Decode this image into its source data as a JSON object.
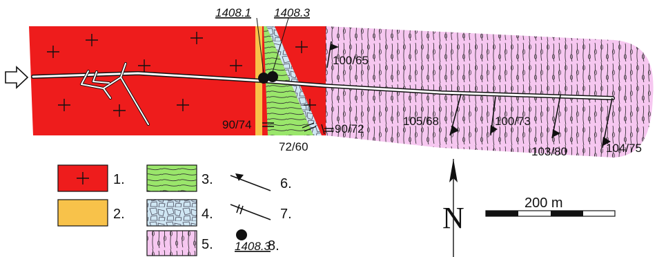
{
  "colors": {
    "granite": "#ee1c1c",
    "dyke": "#f8c24a",
    "green_schist": "#9ae66b",
    "breccia": "#cfe6f3",
    "schist": "#f6c7f0",
    "gallery": "#ffffff"
  },
  "samples": [
    {
      "label": "1408.1"
    },
    {
      "label": "1408.3"
    }
  ],
  "foliation_measurements": [
    {
      "value": "100/65"
    },
    {
      "value": "105/68"
    },
    {
      "value": "100/73"
    },
    {
      "value": "103/80"
    },
    {
      "value": "104/75"
    }
  ],
  "vertical_measurements": [
    {
      "value": "90/74"
    },
    {
      "value": "72/60"
    },
    {
      "value": "90/72"
    }
  ],
  "legend": [
    {
      "number": "1.",
      "pattern": "granite"
    },
    {
      "number": "2.",
      "pattern": "dyke"
    },
    {
      "number": "3.",
      "pattern": "green-schist"
    },
    {
      "number": "4.",
      "pattern": "breccia"
    },
    {
      "number": "5.",
      "pattern": "schist"
    },
    {
      "number": "6.",
      "pattern": "foliation-symbol"
    },
    {
      "number": "7.",
      "pattern": "vertical-symbol"
    },
    {
      "number": "8.",
      "pattern": "sample-dot",
      "sample_label": "1408.3"
    }
  ],
  "north_arrow": {
    "letter": "N"
  },
  "scale_bar": {
    "label": "200 m"
  },
  "entrance_icon": "arrow-right-icon"
}
